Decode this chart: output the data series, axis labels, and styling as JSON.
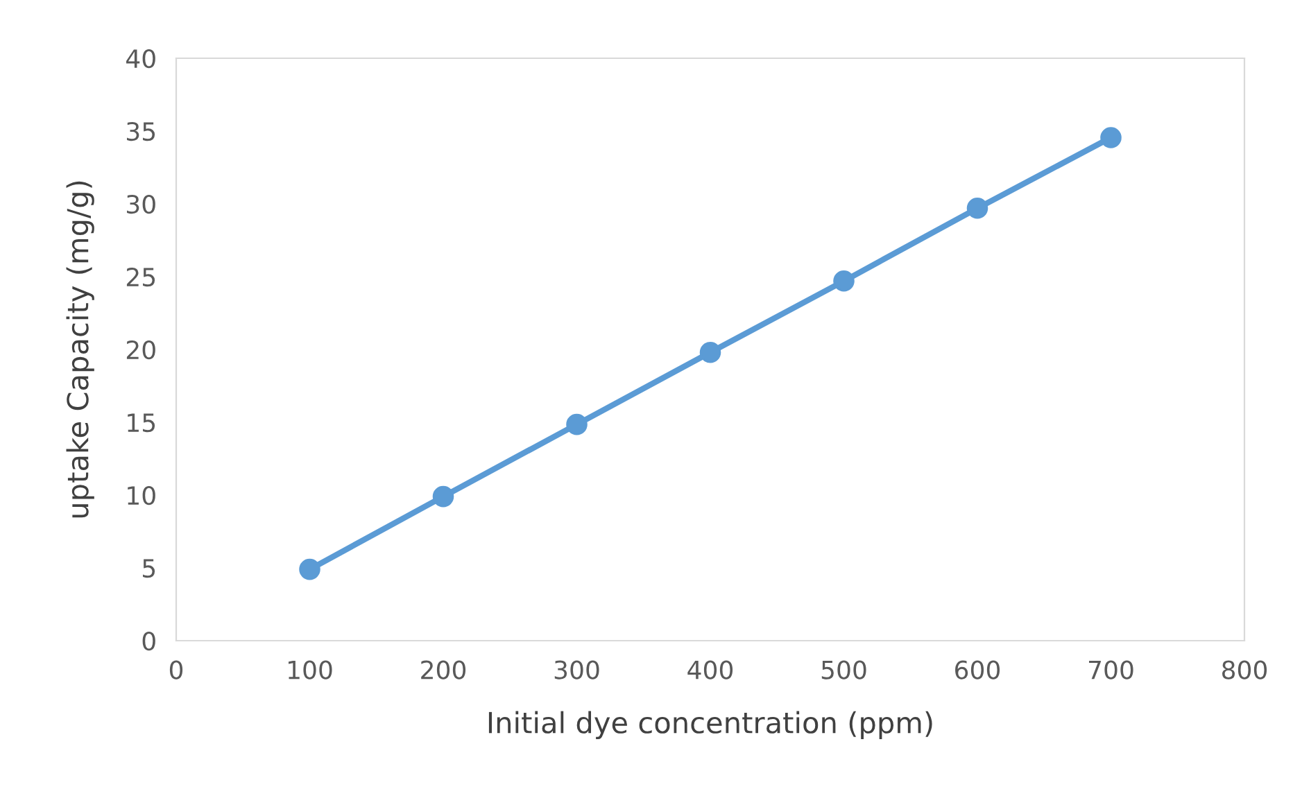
{
  "chart_data": {
    "type": "line",
    "xlabel": "Initial dye concentration (ppm)",
    "ylabel": "uptake Capacity (mg/g)",
    "x": [
      100,
      200,
      300,
      400,
      500,
      600,
      700
    ],
    "series": [
      {
        "color": "#5b9bd5",
        "values": [
          4.9,
          9.9,
          14.85,
          19.8,
          24.7,
          29.7,
          34.55
        ]
      }
    ],
    "xlim": [
      0,
      800
    ],
    "xticks": [
      0,
      100,
      200,
      300,
      400,
      500,
      600,
      700,
      800
    ],
    "ylim": [
      0,
      40
    ],
    "yticks": [
      0,
      5,
      10,
      15,
      20,
      25,
      30,
      35,
      40
    ],
    "grid": false,
    "marker": "circle",
    "line_style": "solid"
  }
}
